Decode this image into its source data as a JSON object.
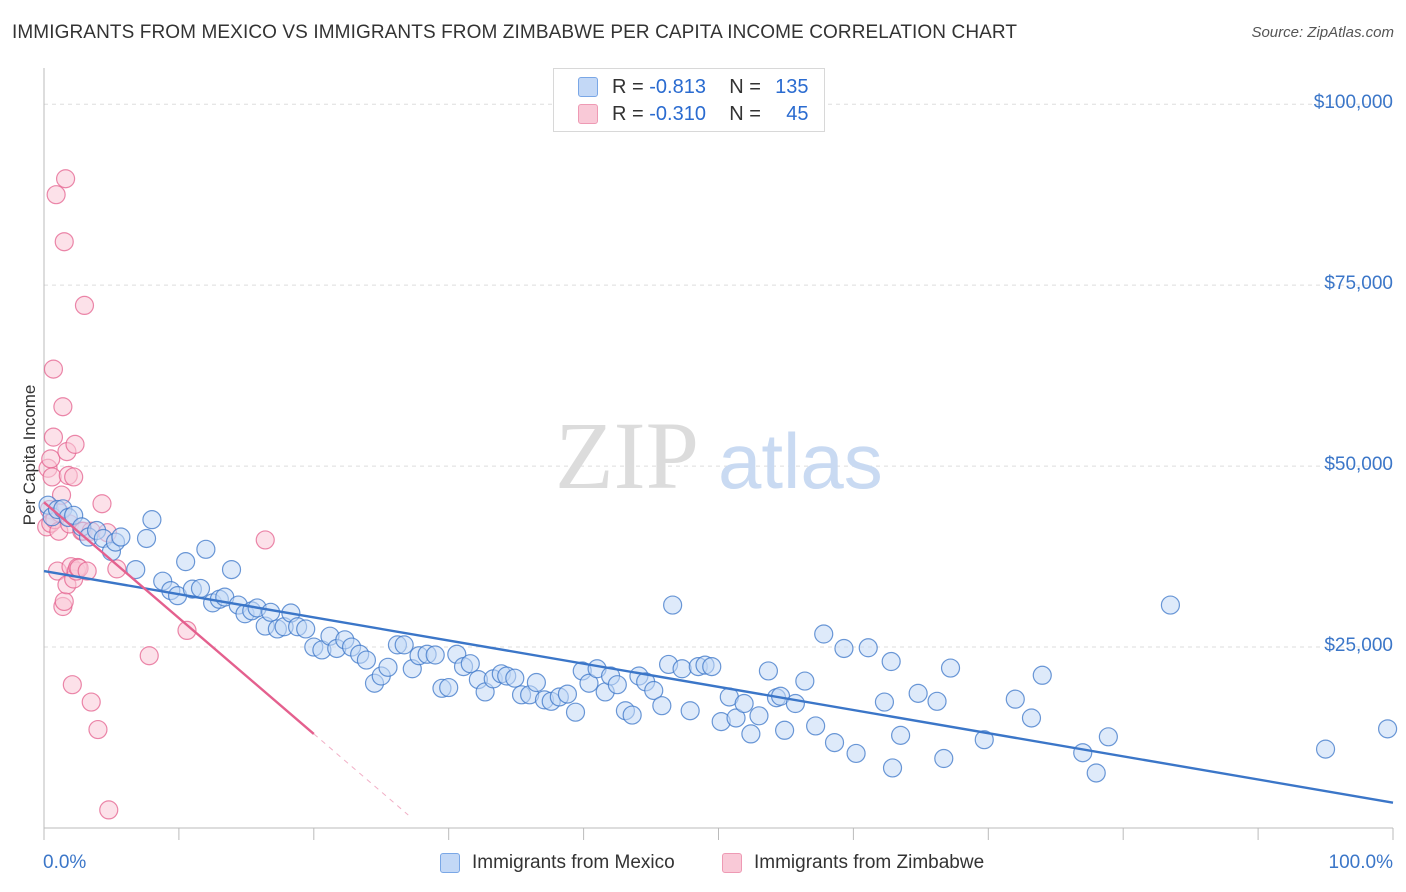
{
  "title": "IMMIGRANTS FROM MEXICO VS IMMIGRANTS FROM ZIMBABWE PER CAPITA INCOME CORRELATION CHART",
  "source": "Source: ZipAtlas.com",
  "watermark": {
    "zip": "ZIP",
    "atlas": "atlas"
  },
  "stats": [
    {
      "r_label": "R =",
      "r_value": "-0.813",
      "n_label": "N =",
      "n_value": "135"
    },
    {
      "r_label": "R =",
      "r_value": "-0.310",
      "n_label": "N =",
      "n_value": "45"
    }
  ],
  "colors": {
    "blue": "#3b76c8",
    "blue_fill": "#c3d8f6",
    "pink": "#e4608e",
    "pink_fill": "#f9c9d7",
    "grid": "#dddddd"
  },
  "chart_data": {
    "type": "scatter",
    "title": "IMMIGRANTS FROM MEXICO VS IMMIGRANTS FROM ZIMBABWE PER CAPITA INCOME CORRELATION CHART",
    "xlabel": "",
    "ylabel": "Per Capita Income",
    "xlim": [
      0,
      100
    ],
    "ylim": [
      0,
      105000
    ],
    "x_tick_labels": [
      "0.0%",
      "100.0%"
    ],
    "y_ticks": [
      {
        "value": 25000,
        "label": "$25,000"
      },
      {
        "value": 50000,
        "label": "$50,000"
      },
      {
        "value": 75000,
        "label": "$75,000"
      },
      {
        "value": 100000,
        "label": "$100,000"
      }
    ],
    "legend_position": "bottom-center",
    "series": [
      {
        "name": "Immigrants from Mexico",
        "color": "#3b76c8",
        "trend": [
          [
            0,
            35500
          ],
          [
            100,
            3500
          ]
        ],
        "points": [
          [
            0.3,
            44600
          ],
          [
            0.6,
            43000
          ],
          [
            1.0,
            44000
          ],
          [
            1.4,
            44100
          ],
          [
            1.8,
            42900
          ],
          [
            2.2,
            43200
          ],
          [
            2.8,
            41600
          ],
          [
            3.3,
            40200
          ],
          [
            3.9,
            41100
          ],
          [
            4.4,
            40000
          ],
          [
            5.0,
            38200
          ],
          [
            5.3,
            39500
          ],
          [
            5.7,
            40200
          ],
          [
            6.8,
            35700
          ],
          [
            7.6,
            40000
          ],
          [
            8.0,
            42600
          ],
          [
            8.8,
            34100
          ],
          [
            9.4,
            32800
          ],
          [
            9.9,
            32100
          ],
          [
            10.5,
            36800
          ],
          [
            11.0,
            33000
          ],
          [
            11.6,
            33100
          ],
          [
            12.0,
            38500
          ],
          [
            12.5,
            31100
          ],
          [
            13.0,
            31600
          ],
          [
            13.4,
            31900
          ],
          [
            13.9,
            35700
          ],
          [
            14.4,
            30800
          ],
          [
            14.9,
            29600
          ],
          [
            15.4,
            30000
          ],
          [
            15.8,
            30400
          ],
          [
            16.4,
            27900
          ],
          [
            16.8,
            29800
          ],
          [
            17.3,
            27500
          ],
          [
            17.8,
            27800
          ],
          [
            18.3,
            29700
          ],
          [
            18.8,
            27800
          ],
          [
            19.4,
            27500
          ],
          [
            20.0,
            25000
          ],
          [
            20.6,
            24600
          ],
          [
            21.2,
            26500
          ],
          [
            21.7,
            24800
          ],
          [
            22.3,
            26000
          ],
          [
            22.8,
            25000
          ],
          [
            23.4,
            24000
          ],
          [
            23.9,
            23200
          ],
          [
            24.5,
            20000
          ],
          [
            25.0,
            21000
          ],
          [
            25.5,
            22200
          ],
          [
            26.2,
            25300
          ],
          [
            26.7,
            25300
          ],
          [
            27.3,
            22000
          ],
          [
            27.8,
            23800
          ],
          [
            28.4,
            24000
          ],
          [
            29.0,
            23900
          ],
          [
            29.5,
            19300
          ],
          [
            30.0,
            19400
          ],
          [
            30.6,
            24000
          ],
          [
            31.1,
            22300
          ],
          [
            31.6,
            22700
          ],
          [
            32.2,
            20500
          ],
          [
            32.7,
            18800
          ],
          [
            33.3,
            20600
          ],
          [
            33.9,
            21300
          ],
          [
            34.3,
            21000
          ],
          [
            34.9,
            20700
          ],
          [
            35.4,
            18400
          ],
          [
            36.0,
            18400
          ],
          [
            36.5,
            20100
          ],
          [
            37.1,
            17700
          ],
          [
            37.6,
            17500
          ],
          [
            38.2,
            18100
          ],
          [
            38.8,
            18500
          ],
          [
            39.4,
            16000
          ],
          [
            39.9,
            21700
          ],
          [
            40.4,
            20000
          ],
          [
            41.0,
            22000
          ],
          [
            41.6,
            18800
          ],
          [
            42.0,
            21000
          ],
          [
            42.5,
            19800
          ],
          [
            43.1,
            16200
          ],
          [
            43.6,
            15600
          ],
          [
            44.1,
            21000
          ],
          [
            44.6,
            20200
          ],
          [
            45.2,
            19000
          ],
          [
            45.8,
            16900
          ],
          [
            46.3,
            22600
          ],
          [
            46.6,
            30800
          ],
          [
            47.3,
            22000
          ],
          [
            47.9,
            16200
          ],
          [
            48.5,
            22300
          ],
          [
            49.0,
            22500
          ],
          [
            49.5,
            22300
          ],
          [
            50.2,
            14700
          ],
          [
            50.8,
            18100
          ],
          [
            51.3,
            15200
          ],
          [
            51.9,
            17200
          ],
          [
            52.4,
            13000
          ],
          [
            53.0,
            15500
          ],
          [
            53.7,
            21700
          ],
          [
            54.3,
            18000
          ],
          [
            54.6,
            18200
          ],
          [
            54.9,
            13500
          ],
          [
            55.7,
            17200
          ],
          [
            56.4,
            20300
          ],
          [
            57.2,
            14100
          ],
          [
            57.8,
            26800
          ],
          [
            58.6,
            11800
          ],
          [
            59.3,
            24800
          ],
          [
            60.2,
            10300
          ],
          [
            61.1,
            24900
          ],
          [
            62.3,
            17400
          ],
          [
            62.8,
            23000
          ],
          [
            62.9,
            8300
          ],
          [
            63.5,
            12800
          ],
          [
            64.8,
            18600
          ],
          [
            66.2,
            17500
          ],
          [
            66.7,
            9600
          ],
          [
            67.2,
            22100
          ],
          [
            69.7,
            12200
          ],
          [
            72.0,
            17800
          ],
          [
            73.2,
            15200
          ],
          [
            74.0,
            21100
          ],
          [
            77.0,
            10400
          ],
          [
            78.0,
            7600
          ],
          [
            78.9,
            12600
          ],
          [
            83.5,
            30800
          ],
          [
            95.0,
            10900
          ],
          [
            99.6,
            13700
          ]
        ]
      },
      {
        "name": "Immigrants from Zimbabwe",
        "color": "#e4608e",
        "trend": [
          [
            0,
            45000
          ],
          [
            20,
            13000
          ]
        ],
        "trend_dashed": [
          [
            20,
            13000
          ],
          [
            27,
            1800
          ]
        ],
        "points": [
          [
            0.2,
            41600
          ],
          [
            0.3,
            49700
          ],
          [
            0.4,
            44000
          ],
          [
            0.5,
            42100
          ],
          [
            0.5,
            51000
          ],
          [
            0.6,
            48500
          ],
          [
            0.7,
            54000
          ],
          [
            0.7,
            63400
          ],
          [
            0.8,
            42600
          ],
          [
            0.9,
            87500
          ],
          [
            1.0,
            35500
          ],
          [
            1.1,
            41000
          ],
          [
            1.2,
            43500
          ],
          [
            1.3,
            46000
          ],
          [
            1.4,
            58200
          ],
          [
            1.4,
            30600
          ],
          [
            1.5,
            31300
          ],
          [
            1.5,
            81000
          ],
          [
            1.6,
            89700
          ],
          [
            1.7,
            52000
          ],
          [
            1.7,
            33600
          ],
          [
            1.8,
            48700
          ],
          [
            1.9,
            42000
          ],
          [
            2.0,
            36100
          ],
          [
            2.1,
            19800
          ],
          [
            2.2,
            34400
          ],
          [
            2.2,
            48500
          ],
          [
            2.3,
            53000
          ],
          [
            2.4,
            35500
          ],
          [
            2.5,
            36000
          ],
          [
            2.6,
            35900
          ],
          [
            2.8,
            41000
          ],
          [
            2.9,
            41000
          ],
          [
            3.0,
            72200
          ],
          [
            3.2,
            35500
          ],
          [
            3.5,
            17400
          ],
          [
            3.5,
            41000
          ],
          [
            4.0,
            13600
          ],
          [
            4.3,
            44800
          ],
          [
            4.7,
            40800
          ],
          [
            4.8,
            2500
          ],
          [
            5.4,
            35800
          ],
          [
            7.8,
            23800
          ],
          [
            10.6,
            27300
          ],
          [
            16.4,
            39800
          ]
        ]
      }
    ]
  },
  "legend": [
    {
      "label": "Immigrants from Mexico"
    },
    {
      "label": "Immigrants from Zimbabwe"
    }
  ]
}
